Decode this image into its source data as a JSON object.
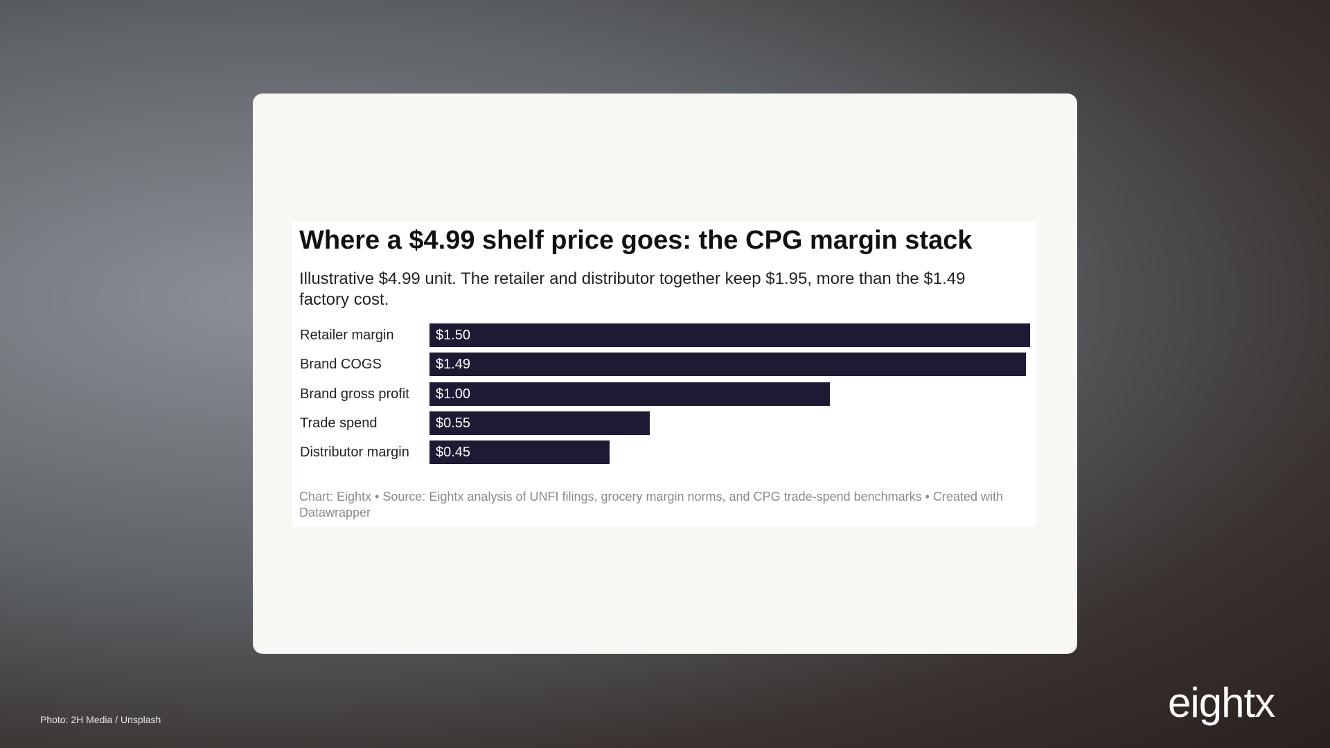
{
  "chart_data": {
    "type": "bar",
    "orientation": "horizontal",
    "title": "Where a $4.99 shelf price goes: the CPG margin stack",
    "subtitle": "Illustrative $4.99 unit. The retailer and distributor together keep $1.95, more than the $1.49 factory cost.",
    "categories": [
      "Retailer margin",
      "Brand COGS",
      "Brand gross profit",
      "Trade spend",
      "Distributor margin"
    ],
    "values": [
      1.5,
      1.49,
      1.0,
      0.55,
      0.45
    ],
    "value_labels": [
      "$1.50",
      "$1.49",
      "$1.00",
      "$0.55",
      "$0.45"
    ],
    "color": "#1c1b33",
    "footer": "Chart: Eightx • Source: Eightx analysis of UNFI filings, grocery margin norms, and CPG trade-spend benchmarks • Created with Datawrapper"
  },
  "photo_credit": "Photo: 2H Media / Unsplash",
  "logo": "eightx"
}
